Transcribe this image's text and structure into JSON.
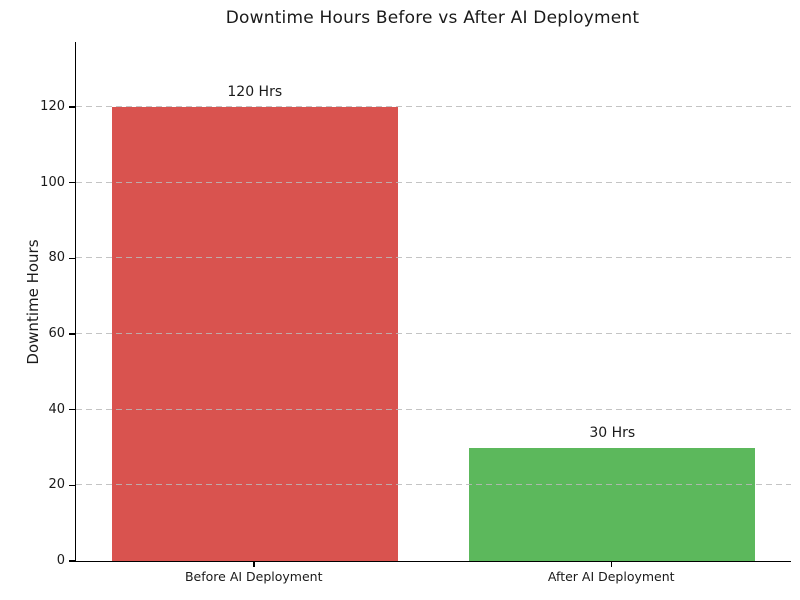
{
  "chart_data": {
    "type": "bar",
    "title": "Downtime Hours Before vs After AI Deployment",
    "ylabel": "Downtime Hours",
    "xlabel": "",
    "categories": [
      "Before AI Deployment",
      "After AI Deployment"
    ],
    "values": [
      120,
      30
    ],
    "bar_labels": [
      "120 Hrs",
      "30 Hrs"
    ],
    "bar_colors": [
      "#d9534f",
      "#5cb85c"
    ],
    "yticks": [
      0,
      20,
      40,
      60,
      80,
      100,
      120
    ],
    "ylim": [
      0,
      137.2
    ],
    "grid": "horizontal-dashed",
    "grid_color": "#b9b9b9",
    "text_color": "#1a1a1a",
    "axis_color": "#000000",
    "background": "#ffffff",
    "legend": "none",
    "bar_width_fraction": 0.8
  }
}
